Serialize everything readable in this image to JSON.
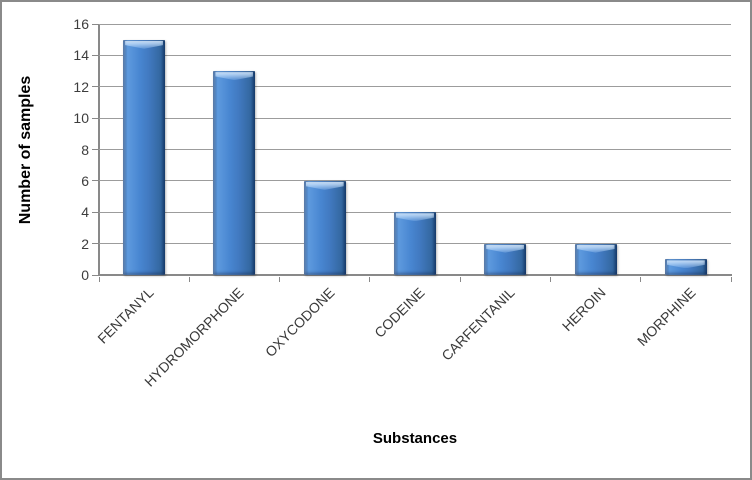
{
  "chart_data": {
    "type": "bar",
    "categories": [
      "FENTANYL",
      "HYDROMORPHONE",
      "OXYCODONE",
      "CODEINE",
      "CARFENTANIL",
      "HEROIN",
      "MORPHINE"
    ],
    "values": [
      15,
      13,
      6,
      4,
      2,
      2,
      1
    ],
    "title": "",
    "xlabel": "Substances",
    "ylabel": "Number of samples",
    "ylim": [
      0,
      16
    ],
    "yticks": [
      0,
      2,
      4,
      6,
      8,
      10,
      12,
      14,
      16
    ],
    "grid": true,
    "legend": false,
    "bar_orientation": "vertical",
    "x_label_rotation_deg": -45
  },
  "colors": {
    "bar_fill": "#4080c8",
    "bar_edge_dark": "#224e84",
    "bar_highlight": "#a8ccf0",
    "gridline": "#9c9c9c",
    "axis": "#898989",
    "tick_text": "#3d3d3d",
    "frame_border": "#8a8a8a",
    "background": "#ffffff"
  }
}
